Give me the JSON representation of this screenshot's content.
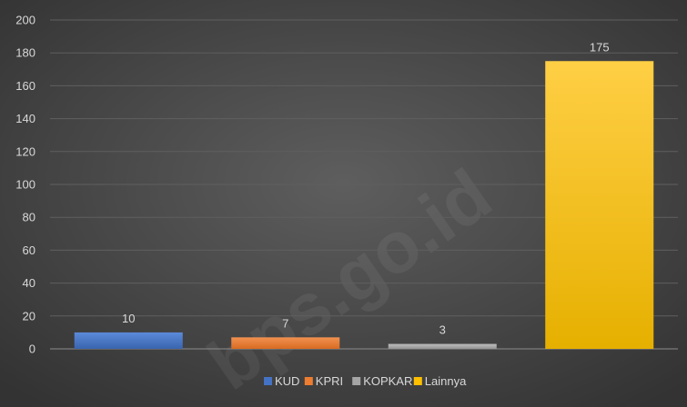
{
  "chart_data": {
    "type": "bar",
    "categories": [
      "KUD",
      "KPRI",
      "KOPKAR",
      "Lainnya"
    ],
    "values": [
      10,
      7,
      3,
      175
    ],
    "ylim": [
      0,
      200
    ],
    "yticks": [
      0,
      20,
      40,
      60,
      80,
      100,
      120,
      140,
      160,
      180,
      200
    ],
    "grid": true,
    "legend": "bottom",
    "colors": {
      "KUD": "#4472c4",
      "KPRI": "#ed7d31",
      "KOPKAR": "#a5a5a5",
      "Lainnya": "#ffc000"
    },
    "watermark": "bps.go.id"
  }
}
